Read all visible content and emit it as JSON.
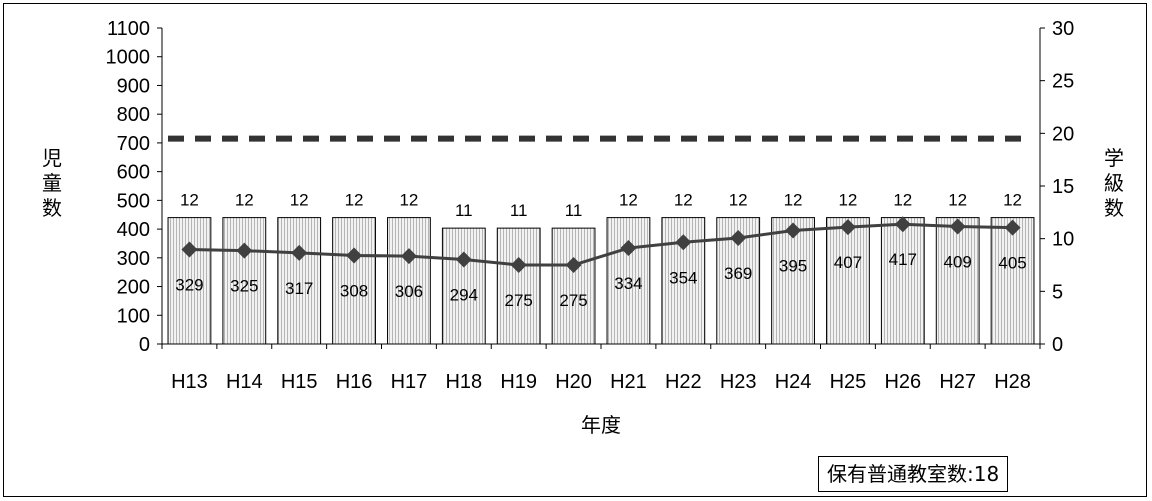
{
  "chart_data": {
    "type": "bar",
    "categories": [
      "H13",
      "H14",
      "H15",
      "H16",
      "H17",
      "H18",
      "H19",
      "H20",
      "H21",
      "H22",
      "H23",
      "H24",
      "H25",
      "H26",
      "H27",
      "H28"
    ],
    "series": [
      {
        "type": "bar",
        "axis": "right",
        "values": [
          12,
          12,
          12,
          12,
          12,
          11,
          11,
          11,
          12,
          12,
          12,
          12,
          12,
          12,
          12,
          12
        ],
        "color": "#d9d9d9"
      },
      {
        "type": "line",
        "axis": "left",
        "values": [
          329,
          325,
          317,
          308,
          306,
          294,
          275,
          275,
          334,
          354,
          369,
          395,
          407,
          417,
          409,
          405
        ],
        "color": "#404040",
        "marker": "diamond"
      }
    ],
    "reference_line": {
      "axis": "right",
      "value": 19.5,
      "style": "dashed",
      "color": "#333333"
    },
    "xlabel": "年度",
    "ylabel_left": "児童数",
    "ylabel_right": "学級数",
    "ylim_left": [
      0,
      1100
    ],
    "yticks_left": [
      0,
      100,
      200,
      300,
      400,
      500,
      600,
      700,
      800,
      900,
      1000,
      1100
    ],
    "ylim_right": [
      0,
      30
    ],
    "yticks_right": [
      0,
      5,
      10,
      15,
      20,
      25,
      30
    ],
    "grid": false,
    "note": "保有普通教室数:18"
  }
}
